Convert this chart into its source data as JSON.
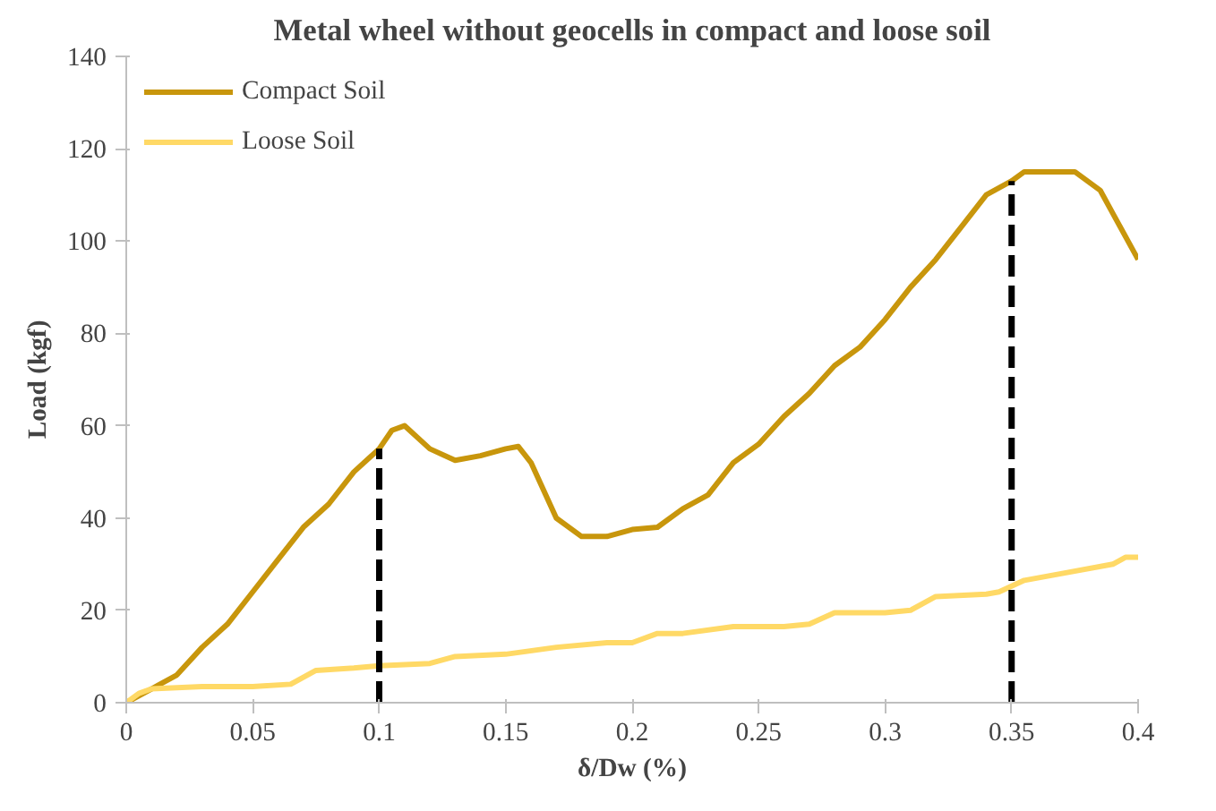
{
  "chart_data": {
    "type": "line",
    "title": "Metal wheel without geocells in compact and loose soil",
    "xlabel": "δ/Dw (%)",
    "ylabel": "Load (kgf)",
    "xlim": [
      0,
      0.4
    ],
    "xticks": [
      0,
      0.05,
      0.1,
      0.15,
      0.2,
      0.25,
      0.3,
      0.35,
      0.4
    ],
    "ylim": [
      0,
      140
    ],
    "yticks": [
      0,
      20,
      40,
      60,
      80,
      100,
      120,
      140
    ],
    "grid": false,
    "legend": "top left",
    "line_style": "solid",
    "series": [
      {
        "name": "Compact Soil",
        "color": "#c8960c",
        "x": [
          0,
          0.01,
          0.02,
          0.03,
          0.04,
          0.05,
          0.06,
          0.07,
          0.08,
          0.09,
          0.1,
          0.105,
          0.11,
          0.12,
          0.13,
          0.14,
          0.15,
          0.155,
          0.16,
          0.17,
          0.18,
          0.19,
          0.2,
          0.21,
          0.22,
          0.23,
          0.24,
          0.25,
          0.26,
          0.27,
          0.28,
          0.29,
          0.3,
          0.31,
          0.32,
          0.33,
          0.34,
          0.35,
          0.355,
          0.375,
          0.385,
          0.39,
          0.4
        ],
        "values": [
          0,
          3,
          6,
          12,
          17,
          24,
          31,
          38,
          43,
          50,
          55,
          59,
          60,
          55,
          52.5,
          53.5,
          55,
          55.5,
          52,
          40,
          36,
          36,
          37.5,
          38,
          42,
          45,
          52,
          56,
          62,
          67,
          73,
          77,
          83,
          90,
          96,
          103,
          110,
          113,
          115,
          115,
          111,
          106,
          96
        ]
      },
      {
        "name": "Loose Soil",
        "color": "#ffd966",
        "x": [
          0,
          0.005,
          0.01,
          0.03,
          0.05,
          0.065,
          0.075,
          0.09,
          0.1,
          0.12,
          0.13,
          0.15,
          0.17,
          0.19,
          0.2,
          0.21,
          0.22,
          0.24,
          0.26,
          0.27,
          0.28,
          0.3,
          0.31,
          0.32,
          0.34,
          0.345,
          0.355,
          0.37,
          0.39,
          0.395,
          0.4
        ],
        "values": [
          0,
          2,
          3,
          3.5,
          3.5,
          4,
          7,
          7.5,
          8,
          8.5,
          10,
          10.5,
          12,
          13,
          13,
          15,
          15,
          16.5,
          16.5,
          17,
          19.5,
          19.5,
          20,
          23,
          23.5,
          24,
          26.5,
          28,
          30,
          31.5,
          31.5
        ]
      }
    ],
    "ref_lines": [
      {
        "axis": "x",
        "value": 0.1,
        "color": "#000000",
        "line_style": "dashed"
      },
      {
        "axis": "x",
        "value": 0.35,
        "color": "#000000",
        "line_style": "dashed"
      }
    ]
  }
}
